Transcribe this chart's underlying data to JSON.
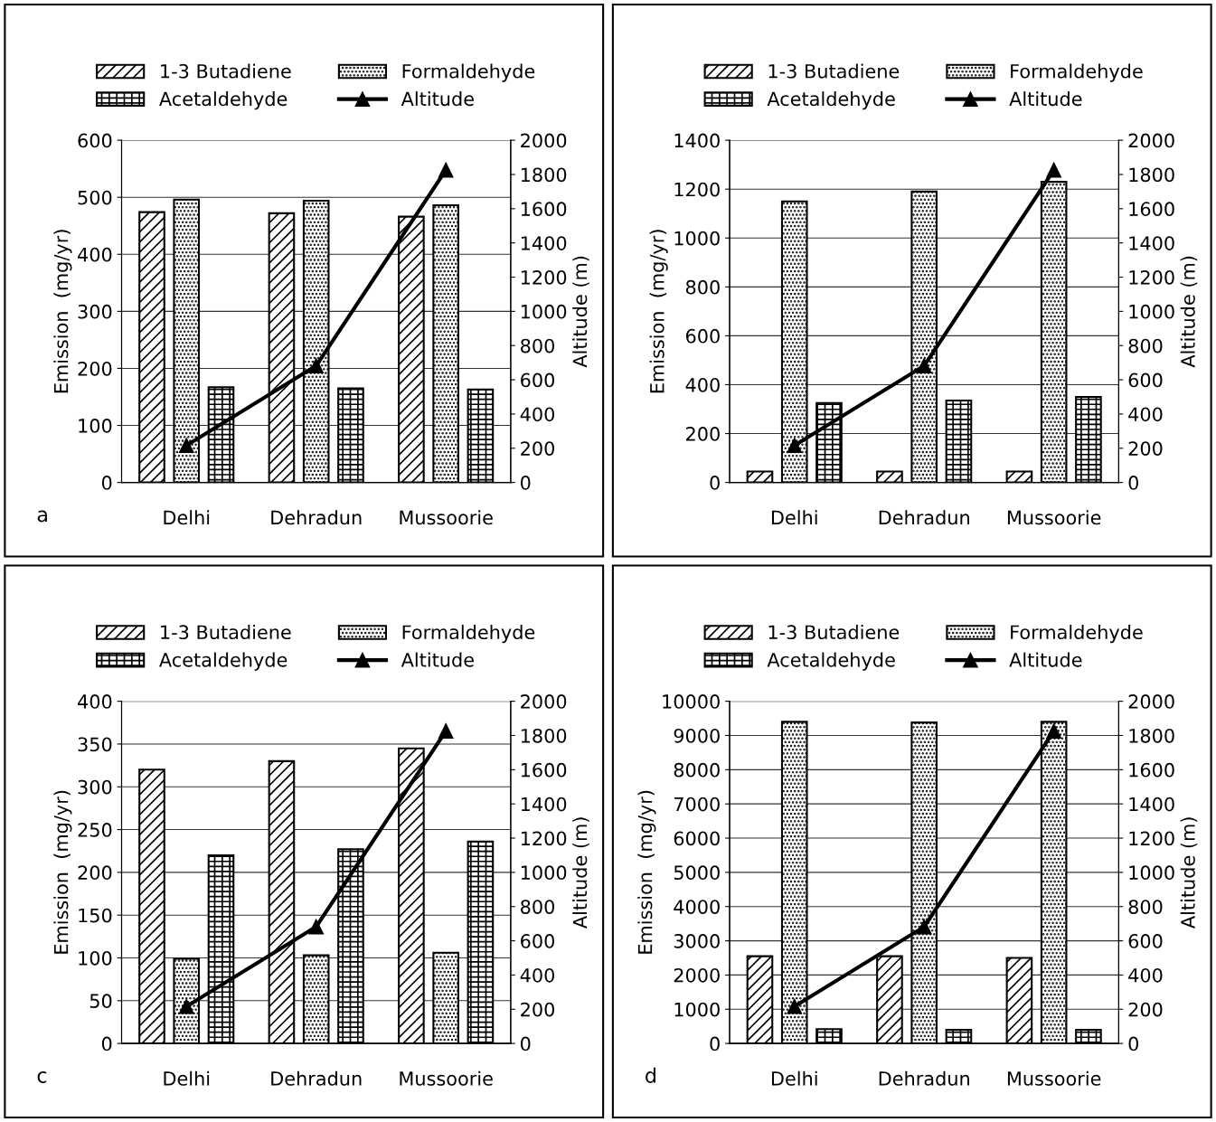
{
  "chart_data": [
    {
      "type": "bar",
      "categories": [
        "Delhi",
        "Dehradun",
        "Mussoorie"
      ],
      "ylabel": "Emission  (mg/yr)",
      "y2label": "Altitude (m)",
      "ylim": [
        0,
        600
      ],
      "yticks": [
        0,
        100,
        200,
        300,
        400,
        500,
        600
      ],
      "y2lim": [
        0,
        2000
      ],
      "y2ticks": [
        0,
        200,
        400,
        600,
        800,
        1000,
        1200,
        1400,
        1600,
        1800,
        2000
      ],
      "grid": "y",
      "legend": "top",
      "annotations": [
        "a"
      ],
      "series": [
        {
          "name": "1-3 Butadiene",
          "color": "#000000",
          "values": [
            474,
            472,
            466
          ]
        },
        {
          "name": "Formaldehyde",
          "color": "#000000",
          "values": [
            496,
            494,
            486
          ]
        },
        {
          "name": "Acetaldehyde",
          "color": "#000000",
          "values": [
            167,
            165,
            163
          ]
        },
        {
          "name": "Altitude",
          "type": "line",
          "axis": "y2",
          "color": "#000000",
          "marker": "triangle",
          "values": [
            216,
            682,
            1826
          ]
        }
      ]
    },
    {
      "type": "bar",
      "categories": [
        "Delhi",
        "Dehradun",
        "Mussoorie"
      ],
      "ylabel": "Emission  (mg/yr)",
      "y2label": "Altitude (m)",
      "ylim": [
        0,
        1400
      ],
      "yticks": [
        0,
        200,
        400,
        600,
        800,
        1000,
        1200,
        1400
      ],
      "y2lim": [
        0,
        2000
      ],
      "y2ticks": [
        0,
        200,
        400,
        600,
        800,
        1000,
        1200,
        1400,
        1600,
        1800,
        2000
      ],
      "grid": "y",
      "legend": "top",
      "series": [
        {
          "name": "1-3 Butadiene",
          "color": "#000000",
          "values": [
            45,
            45,
            45
          ]
        },
        {
          "name": "Formaldehyde",
          "color": "#000000",
          "values": [
            1150,
            1190,
            1230
          ]
        },
        {
          "name": "Acetaldehyde",
          "color": "#000000",
          "values": [
            325,
            335,
            350
          ]
        },
        {
          "name": "Altitude",
          "type": "line",
          "axis": "y2",
          "color": "#000000",
          "marker": "triangle",
          "values": [
            216,
            682,
            1826
          ]
        }
      ]
    },
    {
      "type": "bar",
      "categories": [
        "Delhi",
        "Dehradun",
        "Mussoorie"
      ],
      "ylabel": "Emission  (mg/yr)",
      "y2label": "Altitude (m)",
      "ylim": [
        0,
        400
      ],
      "yticks": [
        0,
        50,
        100,
        150,
        200,
        250,
        300,
        350,
        400
      ],
      "y2lim": [
        0,
        2000
      ],
      "y2ticks": [
        0,
        200,
        400,
        600,
        800,
        1000,
        1200,
        1400,
        1600,
        1800,
        2000
      ],
      "grid": "y",
      "legend": "top",
      "annotations": [
        "c"
      ],
      "series": [
        {
          "name": "1-3 Butadiene",
          "color": "#000000",
          "values": [
            320,
            330,
            345
          ]
        },
        {
          "name": "Formaldehyde",
          "color": "#000000",
          "values": [
            99,
            103,
            106
          ]
        },
        {
          "name": "Acetaldehyde",
          "color": "#000000",
          "values": [
            220,
            227,
            236
          ]
        },
        {
          "name": "Altitude",
          "type": "line",
          "axis": "y2",
          "color": "#000000",
          "marker": "triangle",
          "values": [
            216,
            682,
            1826
          ]
        }
      ]
    },
    {
      "type": "bar",
      "categories": [
        "Delhi",
        "Dehradun",
        "Mussoorie"
      ],
      "ylabel": "Emission  (mg/yr)",
      "y2label": "Altitude (m)",
      "ylim": [
        0,
        10000
      ],
      "yticks": [
        0,
        1000,
        2000,
        3000,
        4000,
        5000,
        6000,
        7000,
        8000,
        9000,
        10000
      ],
      "y2lim": [
        0,
        2000
      ],
      "y2ticks": [
        0,
        200,
        400,
        600,
        800,
        1000,
        1200,
        1400,
        1600,
        1800,
        2000
      ],
      "grid": "y",
      "legend": "top",
      "annotations": [
        "d"
      ],
      "series": [
        {
          "name": "1-3 Butadiene",
          "color": "#000000",
          "values": [
            2550,
            2550,
            2500
          ]
        },
        {
          "name": "Formaldehyde",
          "color": "#000000",
          "values": [
            9400,
            9380,
            9400
          ]
        },
        {
          "name": "Acetaldehyde",
          "color": "#000000",
          "values": [
            420,
            400,
            400
          ]
        },
        {
          "name": "Altitude",
          "type": "line",
          "axis": "y2",
          "color": "#000000",
          "marker": "triangle",
          "values": [
            216,
            682,
            1826
          ]
        }
      ]
    }
  ]
}
